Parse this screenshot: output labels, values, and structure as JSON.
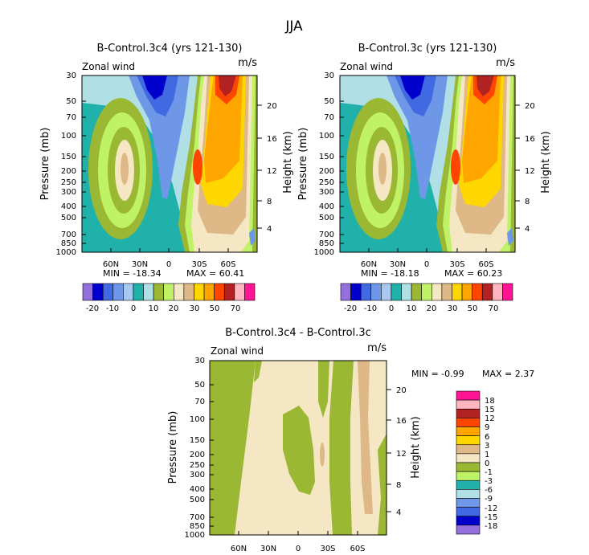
{
  "figure_title": "JJA",
  "chart_data": [
    {
      "type": "heatmap",
      "id": "panel1",
      "title": "B-Control.3c4 (yrs 121-130)",
      "field": "Zonal wind",
      "units": "m/s",
      "ylabel": "Pressure (mb)",
      "ylabel_right": "Height (km)",
      "y_ticks": [
        "30",
        "50",
        "70",
        "100",
        "150",
        "200",
        "250",
        "300",
        "400",
        "500",
        "700",
        "850",
        "1000"
      ],
      "y_right_ticks": [
        "20",
        "16",
        "12",
        "8",
        "4"
      ],
      "x_ticks": [
        "60N",
        "30N",
        "0",
        "30S",
        "60S"
      ],
      "min_label": "MIN = -18.34",
      "max_label": "MAX = 60.41",
      "min": -18.34,
      "max": 60.41,
      "colorbar_labels": [
        "-20",
        "-10",
        "0",
        "10",
        "20",
        "30",
        "50",
        "70"
      ]
    },
    {
      "type": "heatmap",
      "id": "panel2",
      "title": "B-Control.3c (yrs 121-130)",
      "field": "Zonal wind",
      "units": "m/s",
      "ylabel": "Pressure (mb)",
      "ylabel_right": "Height (km)",
      "y_ticks": [
        "30",
        "50",
        "70",
        "100",
        "150",
        "200",
        "250",
        "300",
        "400",
        "500",
        "700",
        "850",
        "1000"
      ],
      "y_right_ticks": [
        "20",
        "16",
        "12",
        "8",
        "4"
      ],
      "x_ticks": [
        "60N",
        "30N",
        "0",
        "30S",
        "60S"
      ],
      "min_label": "MIN = -18.18",
      "max_label": "MAX = 60.23",
      "min": -18.18,
      "max": 60.23,
      "colorbar_labels": [
        "-20",
        "-10",
        "0",
        "10",
        "20",
        "30",
        "50",
        "70"
      ]
    },
    {
      "type": "heatmap",
      "id": "diff",
      "title": "B-Control.3c4 - B-Control.3c",
      "field": "Zonal wind",
      "units": "m/s",
      "ylabel": "Pressure (mb)",
      "ylabel_right": "Height (km)",
      "y_ticks": [
        "30",
        "50",
        "70",
        "100",
        "150",
        "200",
        "250",
        "300",
        "400",
        "500",
        "700",
        "850",
        "1000"
      ],
      "y_right_ticks": [
        "20",
        "16",
        "12",
        "8",
        "4"
      ],
      "x_ticks": [
        "60N",
        "30N",
        "0",
        "30S",
        "60S"
      ],
      "min_label": "MIN = -0.99",
      "max_label": "MAX = 2.37",
      "min": -0.99,
      "max": 2.37,
      "colorbar_labels": [
        "18",
        "15",
        "12",
        "9",
        "6",
        "3",
        "1",
        "0",
        "-1",
        "-3",
        "-6",
        "-9",
        "-12",
        "-15",
        "-18"
      ]
    }
  ],
  "colors": {
    "abs_palette": [
      "#9370db",
      "#0000cd",
      "#4169e1",
      "#6f97e8",
      "#a9c8f0",
      "#20b2aa",
      "#b0e0e6",
      "#9ab833",
      "#bff267",
      "#f5e6c4",
      "#deb887",
      "#ffd700",
      "#ffa500",
      "#ff4500",
      "#b22222",
      "#ffb6c1",
      "#ff1493"
    ],
    "diff_palette": [
      "#ff1493",
      "#ffb6c1",
      "#b22222",
      "#ff4500",
      "#ffa500",
      "#ffd700",
      "#deb887",
      "#f5e6c4",
      "#9ab833",
      "#bff267",
      "#20b2aa",
      "#b0e0e6",
      "#6f97e8",
      "#4169e1",
      "#0000cd",
      "#9370db"
    ],
    "teal": "#20b2aa",
    "lightblue": "#b0e0e6",
    "periwinkle": "#6f97e8",
    "royal": "#4169e1",
    "navy": "#0000cd",
    "olive": "#9ab833",
    "lime": "#bff267",
    "cream": "#f5e6c4",
    "tan": "#deb887",
    "gold": "#ffd700",
    "orange": "#ffa500",
    "red_orange": "#ff4500",
    "firebrick": "#b22222"
  }
}
